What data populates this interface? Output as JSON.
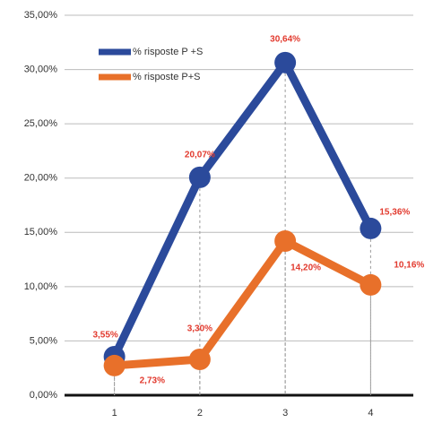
{
  "chart_data": {
    "type": "line",
    "categories": [
      "1",
      "2",
      "3",
      "4"
    ],
    "series": [
      {
        "name": "% risposte P +S",
        "color": "#2b4a9b",
        "values": [
          3.55,
          20.07,
          30.64,
          15.36
        ],
        "value_labels": [
          "3,55%",
          "20,07%",
          "30,64%",
          "15,36%"
        ]
      },
      {
        "name": "%  risposte P+S",
        "color": "#e8702a",
        "values": [
          2.73,
          3.3,
          14.2,
          10.16
        ],
        "value_labels": [
          "2,73%",
          "3,30%",
          "14,20%",
          "10,16%"
        ]
      }
    ],
    "ylim": [
      0,
      35
    ],
    "yticks": [
      {
        "value": 0,
        "label": "0,00%"
      },
      {
        "value": 5,
        "label": "5,00%"
      },
      {
        "value": 10,
        "label": "10,00%"
      },
      {
        "value": 15,
        "label": "15,00%"
      },
      {
        "value": 20,
        "label": "20,00%"
      },
      {
        "value": 25,
        "label": "25,00%"
      },
      {
        "value": 30,
        "label": "30,00%"
      },
      {
        "value": 35,
        "label": "35,00%"
      }
    ],
    "grid": true,
    "legend": "upper left"
  }
}
